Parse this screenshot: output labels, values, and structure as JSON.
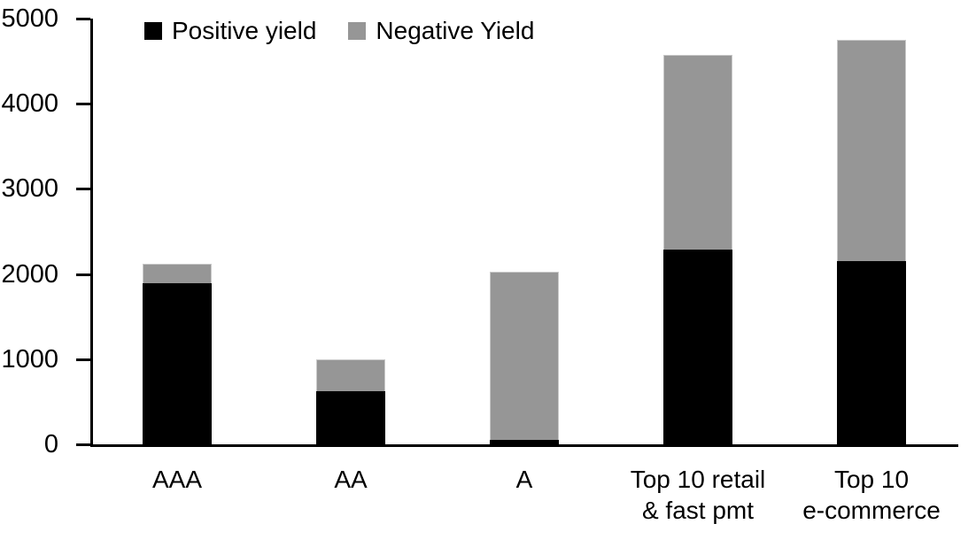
{
  "chart_data": {
    "type": "bar",
    "stacked": true,
    "title": "",
    "xlabel": "",
    "ylabel": "",
    "categories": [
      "AAA",
      "AA",
      "A",
      "Top 10 retail\n& fast pmt",
      "Top 10\ne-commerce"
    ],
    "series": [
      {
        "name": "Positive yield",
        "color": "#000000",
        "values": [
          1890,
          620,
          50,
          2290,
          2150
        ]
      },
      {
        "name": "Negative Yield",
        "color": "#969696",
        "values": [
          230,
          380,
          1980,
          2280,
          2600
        ]
      }
    ],
    "stack_totals": [
      2120,
      1000,
      2030,
      4570,
      4750
    ],
    "ylim": [
      0,
      5000
    ],
    "yticks": [
      0,
      1000,
      2000,
      3000,
      4000,
      5000
    ],
    "grid": false,
    "legend_position": "top"
  }
}
